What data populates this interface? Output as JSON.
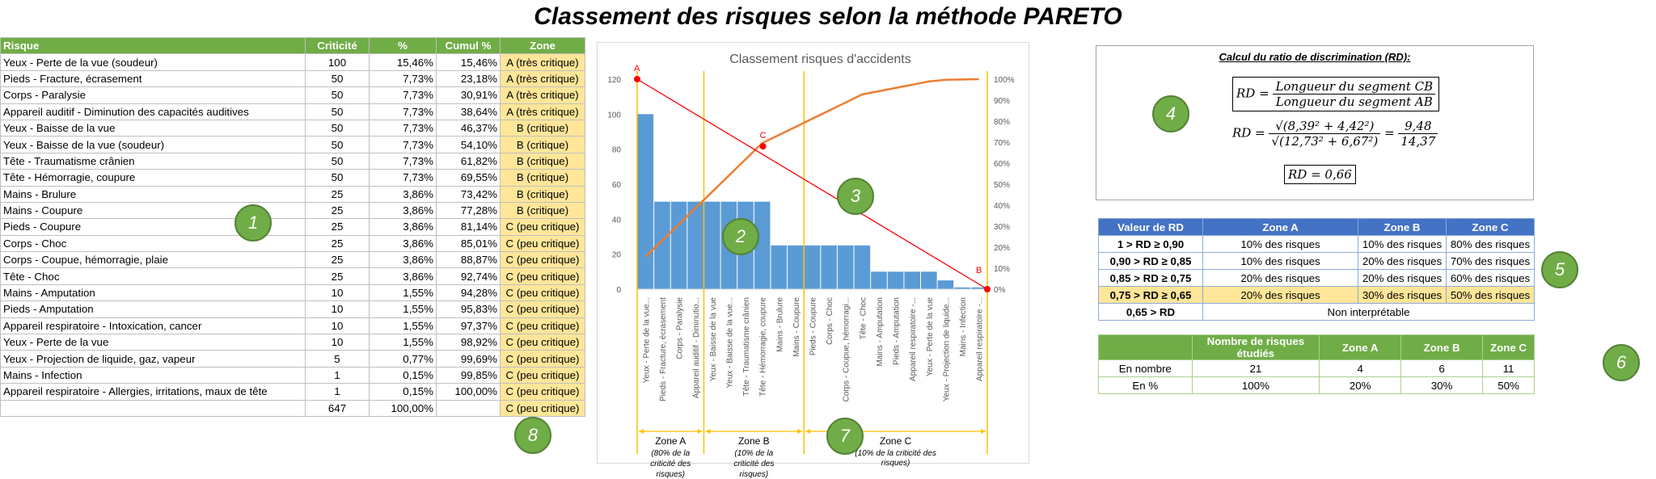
{
  "title": "Classement des risques selon la méthode PARETO",
  "risk_table": {
    "headers": [
      "Risque",
      "Criticité",
      "%",
      "Cumul %",
      "Zone"
    ],
    "rows": [
      [
        "Yeux - Perte de la vue (soudeur)",
        "100",
        "15,46%",
        "15,46%",
        "A (très critique)"
      ],
      [
        "Pieds - Fracture, écrasement",
        "50",
        "7,73%",
        "23,18%",
        "A (très critique)"
      ],
      [
        "Corps - Paralysie",
        "50",
        "7,73%",
        "30,91%",
        "A (très critique)"
      ],
      [
        "Appareil auditif - Diminution des capacités auditives",
        "50",
        "7,73%",
        "38,64%",
        "A (très critique)"
      ],
      [
        "Yeux - Baisse de la vue",
        "50",
        "7,73%",
        "46,37%",
        "B (critique)"
      ],
      [
        "Yeux - Baisse de la vue (soudeur)",
        "50",
        "7,73%",
        "54,10%",
        "B (critique)"
      ],
      [
        "Tête - Traumatisme crânien",
        "50",
        "7,73%",
        "61,82%",
        "B (critique)"
      ],
      [
        "Tête - Hémorragie, coupure",
        "50",
        "7,73%",
        "69,55%",
        "B (critique)"
      ],
      [
        "Mains - Brulure",
        "25",
        "3,86%",
        "73,42%",
        "B (critique)"
      ],
      [
        "Mains - Coupure",
        "25",
        "3,86%",
        "77,28%",
        "B (critique)"
      ],
      [
        "Pieds - Coupure",
        "25",
        "3,86%",
        "81,14%",
        "C (peu critique)"
      ],
      [
        "Corps - Choc",
        "25",
        "3,86%",
        "85,01%",
        "C (peu critique)"
      ],
      [
        "Corps - Coupue, hémorragie, plaie",
        "25",
        "3,86%",
        "88,87%",
        "C (peu critique)"
      ],
      [
        "Tête - Choc",
        "25",
        "3,86%",
        "92,74%",
        "C (peu critique)"
      ],
      [
        "Mains - Amputation",
        "10",
        "1,55%",
        "94,28%",
        "C (peu critique)"
      ],
      [
        "Pieds - Amputation",
        "10",
        "1,55%",
        "95,83%",
        "C (peu critique)"
      ],
      [
        "Appareil respiratoire - Intoxication, cancer",
        "10",
        "1,55%",
        "97,37%",
        "C (peu critique)"
      ],
      [
        "Yeux - Perte de la vue",
        "10",
        "1,55%",
        "98,92%",
        "C (peu critique)"
      ],
      [
        "Yeux - Projection de liquide, gaz, vapeur",
        "5",
        "0,77%",
        "99,69%",
        "C (peu critique)"
      ],
      [
        "Mains - Infection",
        "1",
        "0,15%",
        "99,85%",
        "C (peu critique)"
      ],
      [
        "Appareil respiratoire - Allergies, irritations, maux de tête",
        "1",
        "0,15%",
        "100,00%",
        "C (peu critique)"
      ],
      [
        "",
        "647",
        "100,00%",
        "",
        "C (peu critique)"
      ]
    ]
  },
  "chart_data": {
    "type": "bar",
    "title": "Classement risques d'accidents",
    "categories": [
      "Yeux - Perte de la vue...",
      "Pieds - Fracture, écrasement",
      "Corps - Paralysie",
      "Appareil auditif - Diminutio...",
      "Yeux - Baisse de la vue",
      "Yeux - Baisse de la vue...",
      "Tête - Traumatisme crânien",
      "Tête - Hémorragie, coupure",
      "Mains - Brulure",
      "Mains - Coupure",
      "Pieds - Coupure",
      "Corps - Choc",
      "Corps - Coupue, hémorragi...",
      "Tête - Choc",
      "Mains - Amputation",
      "Pieds - Amputation",
      "Appareil respiratoire -...",
      "Yeux - Perte de la vue",
      "Yeux - Projection de liquide...",
      "Mains - Infection",
      "Appareil respiratoire -..."
    ],
    "series": [
      {
        "type": "bar",
        "values": [
          100,
          50,
          50,
          50,
          50,
          50,
          50,
          50,
          25,
          25,
          25,
          25,
          25,
          25,
          10,
          10,
          10,
          10,
          5,
          1,
          1
        ],
        "color": "#5b9bd5"
      },
      {
        "type": "line",
        "axis": "right",
        "values": [
          15.46,
          23.18,
          30.91,
          38.64,
          46.37,
          54.1,
          61.82,
          69.55,
          73.42,
          77.28,
          81.14,
          85.01,
          88.87,
          92.74,
          94.28,
          95.83,
          97.37,
          98.92,
          99.69,
          99.85,
          100.0
        ],
        "color": "#ed7d31"
      }
    ],
    "ylim": [
      0,
      120
    ],
    "yticks": [
      "0",
      "20",
      "40",
      "60",
      "80",
      "100",
      "120"
    ],
    "y2lim": [
      0,
      100
    ],
    "y2ticks": [
      "0%",
      "10%",
      "20%",
      "30%",
      "40%",
      "50%",
      "60%",
      "70%",
      "80%",
      "90%",
      "100%"
    ],
    "diagonal_line": {
      "color": "#ff0000",
      "points": [
        {
          "label": "A",
          "x": 0,
          "y_pct": 100
        },
        {
          "label": "C",
          "x": 7.55,
          "y_pct": 68
        },
        {
          "label": "B",
          "x": 21,
          "y_pct": 0
        }
      ]
    },
    "zones": [
      {
        "name": "Zone A",
        "note": "(80% de la criticité des risques)",
        "from": 0,
        "to": 4
      },
      {
        "name": "Zone B",
        "note": "(10% de la criticité des risques)",
        "from": 4,
        "to": 10
      },
      {
        "name": "Zone C",
        "note": "(10% de la criticité des risques)",
        "from": 10,
        "to": 21
      }
    ],
    "zone_color": "#ffc000",
    "grid": false
  },
  "rd": {
    "title": "Calcul du ratio de discrimination (RD):",
    "line1_lhs": "RD =",
    "line1_num": "Longueur du segment CB",
    "line1_den": "Longueur du segment AB",
    "line2_lhs": "RD =",
    "line2_num": "√(8,39² + 4,42²)",
    "line2_den": "√(12,73² + 6,67²)",
    "line2_eq": "=",
    "line2_num2": "9,48",
    "line2_den2": "14,37",
    "result": "RD = 0,66"
  },
  "rd_table": {
    "headers": [
      "Valeur de RD",
      "Zone A",
      "Zone B",
      "Zone C"
    ],
    "rows": [
      [
        "1 > RD ≥ 0,90",
        "10% des risques",
        "10% des risques",
        "80% des risques"
      ],
      [
        "0,90 > RD ≥ 0,85",
        "10% des risques",
        "20% des risques",
        "70% des risques"
      ],
      [
        "0,85 > RD ≥ 0,75",
        "20% des risques",
        "20% des risques",
        "60% des risques"
      ],
      [
        "0,75 > RD ≥ 0,65",
        "20% des risques",
        "30% des risques",
        "50% des risques"
      ]
    ],
    "last_row": [
      "0,65 > RD",
      "Non interprétable"
    ]
  },
  "summary_table": {
    "headers": [
      "",
      "Nombre de risques étudiés",
      "Zone A",
      "Zone B",
      "Zone C"
    ],
    "rows": [
      [
        "En nombre",
        "21",
        "4",
        "6",
        "11"
      ],
      [
        "En %",
        "100%",
        "20%",
        "30%",
        "50%"
      ]
    ]
  },
  "badges": [
    "1",
    "2",
    "3",
    "4",
    "5",
    "6",
    "7",
    "8"
  ],
  "colors": {
    "green": "#70ad47",
    "blue_header": "#4472c4",
    "zone_fill": "#ffe699",
    "bar": "#5b9bd5",
    "cumul_line": "#ed7d31",
    "red_line": "#ff0000",
    "zone_divider": "#ffc000"
  }
}
